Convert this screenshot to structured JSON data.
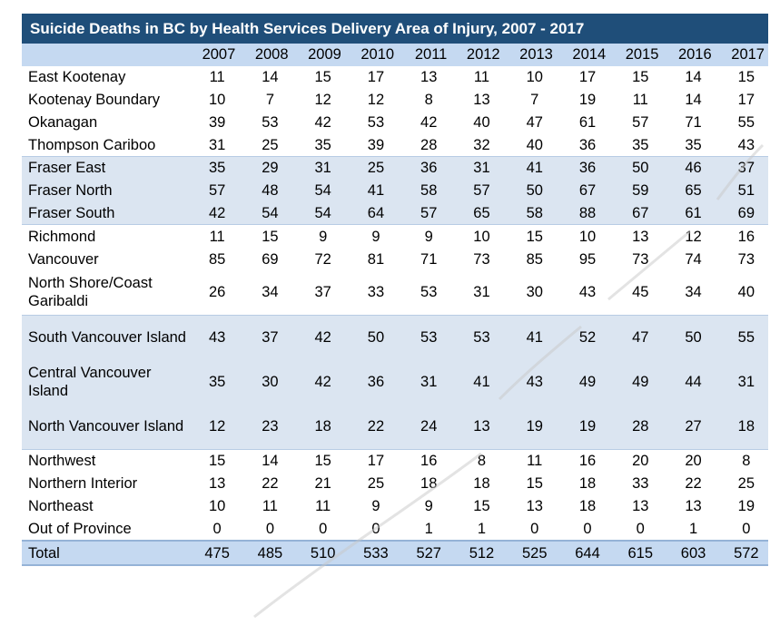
{
  "chart_data": {
    "type": "table",
    "title": "Suicide Deaths in BC by Health Services Delivery Area of Injury, 2007 - 2017",
    "years": [
      "2007",
      "2008",
      "2009",
      "2010",
      "2011",
      "2012",
      "2013",
      "2014",
      "2015",
      "2016",
      "2017"
    ],
    "rows": [
      {
        "name": "East Kootenay",
        "values": [
          11,
          14,
          15,
          17,
          13,
          11,
          10,
          17,
          15,
          14,
          15
        ]
      },
      {
        "name": "Kootenay Boundary",
        "values": [
          10,
          7,
          12,
          12,
          8,
          13,
          7,
          19,
          11,
          14,
          17
        ]
      },
      {
        "name": "Okanagan",
        "values": [
          39,
          53,
          42,
          53,
          42,
          40,
          47,
          61,
          57,
          71,
          55
        ]
      },
      {
        "name": "Thompson Cariboo",
        "values": [
          31,
          25,
          35,
          39,
          28,
          32,
          40,
          36,
          35,
          35,
          43
        ]
      },
      {
        "name": "Fraser East",
        "values": [
          35,
          29,
          31,
          25,
          36,
          31,
          41,
          36,
          50,
          46,
          37
        ]
      },
      {
        "name": "Fraser North",
        "values": [
          57,
          48,
          54,
          41,
          58,
          57,
          50,
          67,
          59,
          65,
          51
        ]
      },
      {
        "name": "Fraser South",
        "values": [
          42,
          54,
          54,
          64,
          57,
          65,
          58,
          88,
          67,
          61,
          69
        ]
      },
      {
        "name": "Richmond",
        "values": [
          11,
          15,
          9,
          9,
          9,
          10,
          15,
          10,
          13,
          12,
          16
        ]
      },
      {
        "name": "Vancouver",
        "values": [
          85,
          69,
          72,
          81,
          71,
          73,
          85,
          95,
          73,
          74,
          73
        ]
      },
      {
        "name": "North Shore/Coast Garibaldi",
        "values": [
          26,
          34,
          37,
          33,
          53,
          31,
          30,
          43,
          45,
          34,
          40
        ]
      },
      {
        "name": "South Vancouver Island",
        "values": [
          43,
          37,
          42,
          50,
          53,
          53,
          41,
          52,
          47,
          50,
          55
        ]
      },
      {
        "name": "Central Vancouver Island",
        "values": [
          35,
          30,
          42,
          36,
          31,
          41,
          43,
          49,
          49,
          44,
          31
        ]
      },
      {
        "name": "North Vancouver Island",
        "values": [
          12,
          23,
          18,
          22,
          24,
          13,
          19,
          19,
          28,
          27,
          18
        ]
      },
      {
        "name": "Northwest",
        "values": [
          15,
          14,
          15,
          17,
          16,
          8,
          11,
          16,
          20,
          20,
          8
        ]
      },
      {
        "name": "Northern Interior",
        "values": [
          13,
          22,
          21,
          25,
          18,
          18,
          15,
          18,
          33,
          22,
          25
        ]
      },
      {
        "name": "Northeast",
        "values": [
          10,
          11,
          11,
          9,
          9,
          15,
          13,
          18,
          13,
          13,
          19
        ]
      },
      {
        "name": "Out of Province",
        "values": [
          0,
          0,
          0,
          0,
          1,
          1,
          0,
          0,
          0,
          1,
          0
        ]
      }
    ],
    "total": {
      "name": "Total",
      "values": [
        475,
        485,
        510,
        533,
        527,
        512,
        525,
        644,
        615,
        603,
        572
      ]
    }
  },
  "colors": {
    "title_bg": "#1F4E79",
    "header_bg": "#C5D9F1",
    "band_bg": "#DBE5F1",
    "total_bg": "#C5D9F1"
  },
  "row_styles": [
    "white",
    "white",
    "white",
    "white",
    "blue",
    "blue",
    "blue",
    "white",
    "white",
    "white",
    "blue",
    "blue",
    "blue",
    "white",
    "white",
    "white",
    "white"
  ],
  "tall_rows": [
    9,
    10,
    11,
    12
  ]
}
